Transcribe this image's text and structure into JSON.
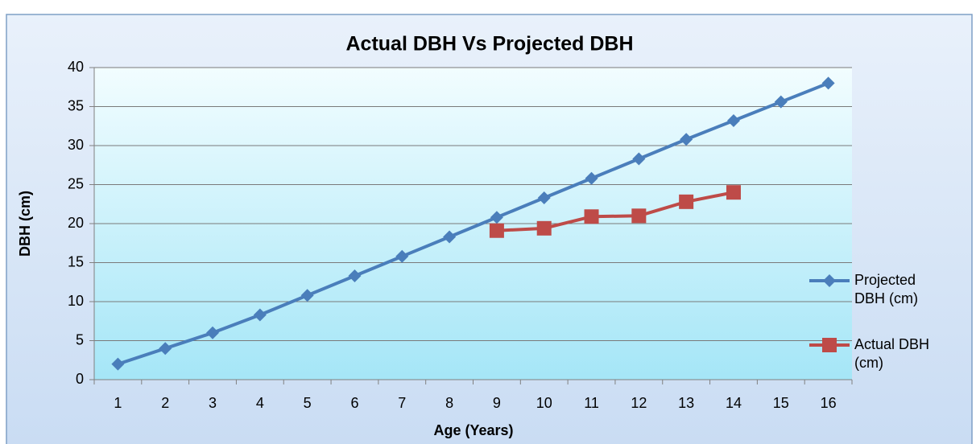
{
  "chart_data": {
    "type": "line",
    "title": "Actual DBH Vs Projected DBH",
    "x_label": "Age (Years)",
    "y_label": "DBH (cm)",
    "categories": [
      1,
      2,
      3,
      4,
      5,
      6,
      7,
      8,
      9,
      10,
      11,
      12,
      13,
      14,
      15,
      16
    ],
    "series": [
      {
        "name": "Projected DBH (cm)",
        "color": "#4a7ebb",
        "marker": "diamond",
        "values": [
          2,
          4,
          6,
          8.3,
          10.8,
          13.3,
          15.8,
          18.3,
          20.8,
          23.3,
          25.8,
          28.3,
          30.8,
          33.2,
          35.6,
          38
        ]
      },
      {
        "name": "Actual DBH (cm)",
        "color": "#be4b48",
        "marker": "square",
        "values": [
          null,
          null,
          null,
          null,
          null,
          null,
          null,
          null,
          19.1,
          19.4,
          20.9,
          21.0,
          22.8,
          24.0,
          null,
          null
        ]
      }
    ],
    "ylim": [
      0,
      40
    ],
    "yticks": [
      0,
      5,
      10,
      15,
      20,
      25,
      30,
      35,
      40
    ],
    "grid": true,
    "legend": "right"
  }
}
